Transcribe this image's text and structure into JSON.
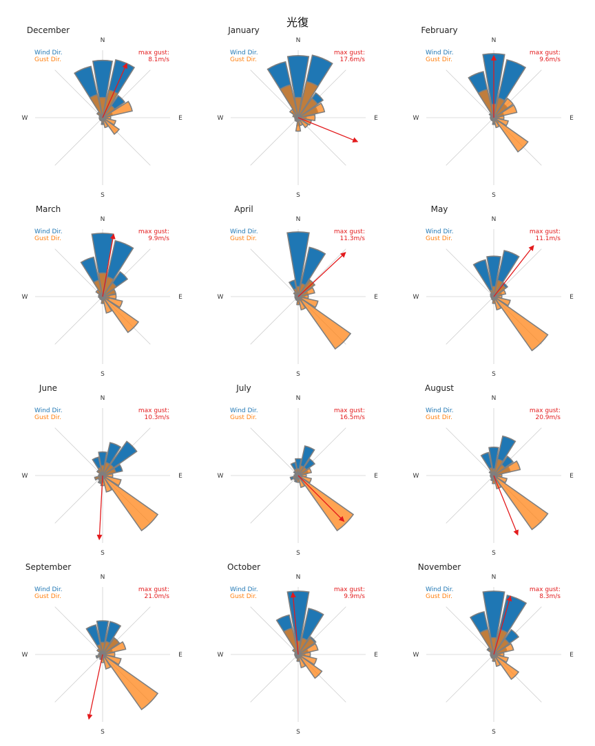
{
  "title": "光復",
  "colors": {
    "wind": "#1f77b4",
    "gust": "#ff7f0e",
    "arrow": "#e31a1c",
    "bar_edge": "#7f7f7f",
    "axis": "#d0d0d0"
  },
  "compass_labels": {
    "n": "N",
    "e": "E",
    "s": "S",
    "w": "W"
  },
  "legend": {
    "wind": "Wind Dir.",
    "gust": "Gust Dir.",
    "gust_label": "max gust:"
  },
  "chart_data": {
    "type": "polar_bar",
    "sectors": 16,
    "direction_order": [
      "N",
      "NNE",
      "NE",
      "ENE",
      "E",
      "ESE",
      "SE",
      "SSE",
      "S",
      "SSW",
      "SW",
      "WSW",
      "W",
      "WNW",
      "NW",
      "NNW"
    ],
    "radial_scale": "relative frequency, 1.0 = outer ring",
    "months": [
      {
        "name": "December",
        "max_gust": "8.1m/s",
        "gust_arrow_deg": 24,
        "gust_arrow_len": 0.88,
        "wind": [
          0.85,
          0.88,
          0.4,
          0.15,
          0.08,
          0.05,
          0.06,
          0.06,
          0.1,
          0.05,
          0.05,
          0.05,
          0.04,
          0.05,
          0.1,
          0.78
        ],
        "gust": [
          0.3,
          0.42,
          0.22,
          0.45,
          0.12,
          0.2,
          0.3,
          0.15,
          0.08,
          0.05,
          0.04,
          0.05,
          0.04,
          0.05,
          0.1,
          0.35
        ]
      },
      {
        "name": "January",
        "max_gust": "17.6m/s",
        "gust_arrow_deg": 112,
        "gust_arrow_len": 0.95,
        "wind": [
          0.92,
          0.95,
          0.45,
          0.3,
          0.12,
          0.06,
          0.05,
          0.05,
          0.12,
          0.06,
          0.06,
          0.05,
          0.05,
          0.06,
          0.12,
          0.85
        ],
        "gust": [
          0.3,
          0.55,
          0.35,
          0.4,
          0.25,
          0.2,
          0.18,
          0.12,
          0.2,
          0.06,
          0.05,
          0.05,
          0.05,
          0.08,
          0.15,
          0.5
        ]
      },
      {
        "name": "February",
        "max_gust": "9.6m/s",
        "gust_arrow_deg": 0,
        "gust_arrow_len": 0.92,
        "wind": [
          0.95,
          0.88,
          0.25,
          0.15,
          0.08,
          0.05,
          0.1,
          0.06,
          0.1,
          0.05,
          0.05,
          0.04,
          0.05,
          0.04,
          0.08,
          0.7
        ],
        "gust": [
          0.2,
          0.3,
          0.35,
          0.35,
          0.15,
          0.22,
          0.62,
          0.15,
          0.08,
          0.05,
          0.04,
          0.05,
          0.04,
          0.05,
          0.06,
          0.43
        ]
      },
      {
        "name": "March",
        "max_gust": "9.9m/s",
        "gust_arrow_deg": 10,
        "gust_arrow_len": 0.94,
        "wind": [
          0.94,
          0.85,
          0.45,
          0.2,
          0.1,
          0.1,
          0.06,
          0.06,
          0.1,
          0.05,
          0.05,
          0.05,
          0.04,
          0.05,
          0.1,
          0.6
        ],
        "gust": [
          0.35,
          0.3,
          0.25,
          0.2,
          0.2,
          0.3,
          0.65,
          0.25,
          0.1,
          0.05,
          0.04,
          0.05,
          0.06,
          0.06,
          0.12,
          0.25
        ]
      },
      {
        "name": "April",
        "max_gust": "11.3m/s",
        "gust_arrow_deg": 47,
        "gust_arrow_len": 0.96,
        "wind": [
          0.96,
          0.75,
          0.3,
          0.15,
          0.1,
          0.06,
          0.08,
          0.06,
          0.1,
          0.06,
          0.05,
          0.04,
          0.04,
          0.05,
          0.07,
          0.25
        ],
        "gust": [
          0.15,
          0.2,
          0.3,
          0.25,
          0.15,
          0.3,
          0.95,
          0.2,
          0.12,
          0.05,
          0.05,
          0.05,
          0.04,
          0.05,
          0.08,
          0.12
        ]
      },
      {
        "name": "May",
        "max_gust": "11.1m/s",
        "gust_arrow_deg": 38,
        "gust_arrow_len": 0.96,
        "wind": [
          0.6,
          0.7,
          0.25,
          0.12,
          0.08,
          0.06,
          0.06,
          0.05,
          0.08,
          0.05,
          0.04,
          0.04,
          0.04,
          0.05,
          0.06,
          0.56
        ],
        "gust": [
          0.15,
          0.25,
          0.22,
          0.18,
          0.12,
          0.25,
          0.98,
          0.2,
          0.1,
          0.05,
          0.04,
          0.04,
          0.04,
          0.04,
          0.06,
          0.1
        ]
      },
      {
        "name": "June",
        "max_gust": "10.3m/s",
        "gust_arrow_deg": 183,
        "gust_arrow_len": 0.95,
        "wind": [
          0.35,
          0.5,
          0.62,
          0.3,
          0.08,
          0.06,
          0.05,
          0.05,
          0.1,
          0.12,
          0.08,
          0.12,
          0.06,
          0.05,
          0.1,
          0.28
        ],
        "gust": [
          0.15,
          0.2,
          0.2,
          0.2,
          0.15,
          0.28,
          1.0,
          0.25,
          0.15,
          0.1,
          0.08,
          0.12,
          0.05,
          0.05,
          0.1,
          0.12
        ]
      },
      {
        "name": "July",
        "max_gust": "16.5m/s",
        "gust_arrow_deg": 135,
        "gust_arrow_len": 0.96,
        "wind": [
          0.25,
          0.45,
          0.3,
          0.15,
          0.06,
          0.06,
          0.08,
          0.05,
          0.08,
          0.1,
          0.08,
          0.12,
          0.06,
          0.05,
          0.08,
          0.2
        ],
        "gust": [
          0.1,
          0.15,
          0.15,
          0.2,
          0.12,
          0.2,
          1.0,
          0.18,
          0.1,
          0.08,
          0.06,
          0.08,
          0.05,
          0.04,
          0.06,
          0.1
        ]
      },
      {
        "name": "August",
        "max_gust": "20.9m/s",
        "gust_arrow_deg": 158,
        "gust_arrow_len": 0.95,
        "wind": [
          0.42,
          0.6,
          0.35,
          0.25,
          0.1,
          0.06,
          0.06,
          0.05,
          0.1,
          0.08,
          0.05,
          0.05,
          0.05,
          0.05,
          0.08,
          0.35
        ],
        "gust": [
          0.1,
          0.25,
          0.2,
          0.4,
          0.12,
          0.2,
          0.98,
          0.2,
          0.12,
          0.06,
          0.05,
          0.05,
          0.04,
          0.04,
          0.07,
          0.12
        ]
      },
      {
        "name": "September",
        "max_gust": "21.0m/s",
        "gust_arrow_deg": 192,
        "gust_arrow_len": 0.98,
        "wind": [
          0.5,
          0.5,
          0.3,
          0.15,
          0.06,
          0.06,
          0.06,
          0.05,
          0.08,
          0.08,
          0.06,
          0.1,
          0.06,
          0.05,
          0.08,
          0.45
        ],
        "gust": [
          0.18,
          0.2,
          0.3,
          0.35,
          0.18,
          0.28,
          1.0,
          0.22,
          0.12,
          0.06,
          0.05,
          0.08,
          0.05,
          0.05,
          0.1,
          0.15
        ]
      },
      {
        "name": "October",
        "max_gust": "9.9m/s",
        "gust_arrow_deg": 355,
        "gust_arrow_len": 0.92,
        "wind": [
          0.94,
          0.7,
          0.32,
          0.15,
          0.1,
          0.06,
          0.06,
          0.05,
          0.1,
          0.06,
          0.05,
          0.05,
          0.04,
          0.05,
          0.08,
          0.6
        ],
        "gust": [
          0.2,
          0.25,
          0.3,
          0.3,
          0.18,
          0.28,
          0.43,
          0.2,
          0.1,
          0.05,
          0.04,
          0.05,
          0.05,
          0.05,
          0.1,
          0.4
        ]
      },
      {
        "name": "November",
        "max_gust": "8.3m/s",
        "gust_arrow_deg": 16,
        "gust_arrow_len": 0.9,
        "wind": [
          0.94,
          0.9,
          0.45,
          0.2,
          0.1,
          0.06,
          0.06,
          0.05,
          0.1,
          0.06,
          0.05,
          0.05,
          0.04,
          0.05,
          0.12,
          0.65
        ],
        "gust": [
          0.25,
          0.38,
          0.28,
          0.3,
          0.15,
          0.22,
          0.45,
          0.18,
          0.1,
          0.05,
          0.04,
          0.05,
          0.04,
          0.05,
          0.1,
          0.38
        ]
      }
    ]
  }
}
